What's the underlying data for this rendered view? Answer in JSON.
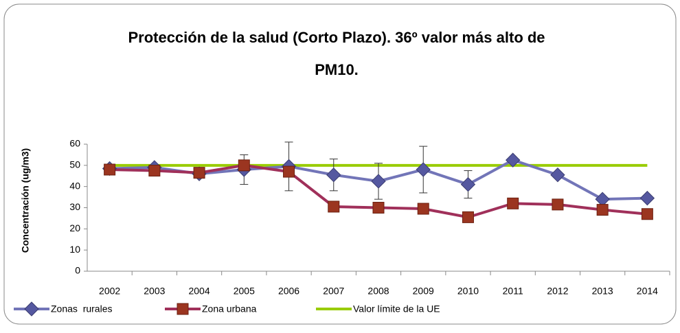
{
  "chart_data": {
    "type": "line",
    "title": [
      "Protección de la salud (Corto Plazo). 36º valor más alto de",
      "PM10."
    ],
    "y_label": "Concentración (ug/m3)",
    "categories": [
      "2002",
      "2003",
      "2004",
      "2005",
      "2006",
      "2007",
      "2008",
      "2009",
      "2010",
      "2011",
      "2012",
      "2013",
      "2014"
    ],
    "series": [
      {
        "name": "Zonas  rurales",
        "color": "#5558a0",
        "line_color": "#7275b8",
        "marker": "diamond",
        "values": [
          48.5,
          49,
          46,
          48,
          49.5,
          45.5,
          42.5,
          48,
          41,
          52.5,
          45.5,
          34,
          34.5
        ],
        "errors": [
          null,
          null,
          null,
          7,
          11.5,
          7.5,
          8.5,
          11,
          6.5,
          null,
          null,
          null,
          null
        ]
      },
      {
        "name": "Zona urbana",
        "color": "#9b3520",
        "line_color": "#a0305a",
        "marker": "square",
        "values": [
          48,
          47.5,
          46.5,
          50,
          47,
          30.5,
          30,
          29.5,
          25.5,
          32,
          31.5,
          29,
          27
        ]
      },
      {
        "name": "Valor límite de la UE",
        "color": "#99cc00",
        "line_color": "#99cc00",
        "marker": "none",
        "values": [
          50,
          50,
          50,
          50,
          50,
          50,
          50,
          50,
          50,
          50,
          50,
          50,
          50
        ]
      }
    ],
    "ylim": [
      0,
      60
    ],
    "yticks": [
      0,
      10,
      20,
      30,
      40,
      50,
      60
    ],
    "legend": "bottom"
  }
}
